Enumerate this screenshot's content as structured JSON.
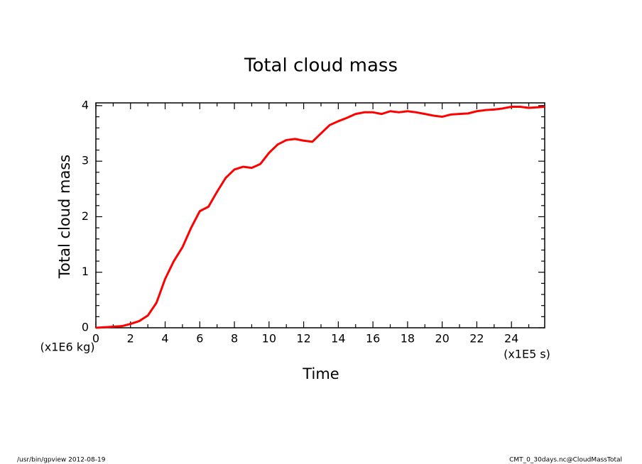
{
  "chart_data": {
    "type": "line",
    "title": "Total cloud mass",
    "xlabel": "Time",
    "ylabel": "Total cloud mass",
    "xunit": "(x1E5 s)",
    "yunit": "(x1E6 kg)",
    "x": [
      0,
      0.5,
      1,
      1.5,
      2,
      2.5,
      3,
      3.5,
      4,
      4.5,
      5,
      5.5,
      6,
      6.5,
      7,
      7.5,
      8,
      8.5,
      9,
      9.5,
      10,
      10.5,
      11,
      11.5,
      12,
      12.5,
      13,
      13.5,
      14,
      14.5,
      15,
      15.5,
      16,
      16.5,
      17,
      17.5,
      18,
      18.5,
      19,
      19.5,
      20,
      20.5,
      21,
      21.5,
      22,
      22.5,
      23,
      23.5,
      24,
      24.5,
      25,
      25.5,
      25.92
    ],
    "series": [
      {
        "name": "Total cloud mass",
        "color": "#ff0000",
        "values": [
          0,
          0.01,
          0.02,
          0.03,
          0.07,
          0.12,
          0.22,
          0.45,
          0.88,
          1.2,
          1.45,
          1.8,
          2.1,
          2.18,
          2.45,
          2.7,
          2.85,
          2.9,
          2.88,
          2.95,
          3.15,
          3.3,
          3.38,
          3.4,
          3.37,
          3.35,
          3.5,
          3.65,
          3.72,
          3.78,
          3.85,
          3.88,
          3.88,
          3.85,
          3.9,
          3.88,
          3.9,
          3.88,
          3.85,
          3.82,
          3.8,
          3.84,
          3.85,
          3.86,
          3.9,
          3.92,
          3.93,
          3.95,
          3.98,
          3.98,
          3.96,
          3.97,
          3.98
        ]
      }
    ],
    "xlim": [
      0,
      25.92
    ],
    "ylim": [
      0,
      4.05
    ],
    "xticks": [
      0,
      2,
      4,
      6,
      8,
      10,
      12,
      14,
      16,
      18,
      20,
      22,
      24
    ],
    "yticks": [
      0,
      1,
      2,
      3,
      4
    ],
    "xminorticks": [
      1,
      3,
      5,
      7,
      9,
      11,
      13,
      15,
      17,
      19,
      21,
      23,
      25
    ],
    "yminorticks": [
      0.2,
      0.4,
      0.6,
      0.8,
      1.2,
      1.4,
      1.6,
      1.8,
      2.2,
      2.4,
      2.6,
      2.8,
      3.2,
      3.4,
      3.6,
      3.8,
      4.0
    ]
  },
  "footer": {
    "left": "/usr/bin/gpview  2012-08-19",
    "right": "CMT_0_30days.nc@CloudMassTotal"
  }
}
